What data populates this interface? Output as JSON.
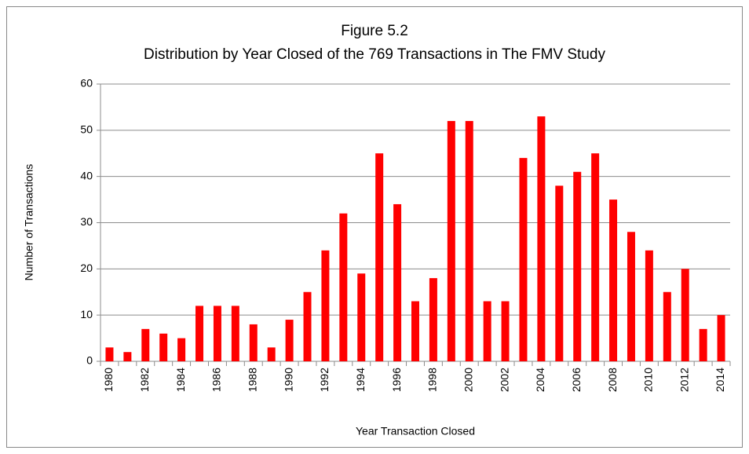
{
  "chart_data": {
    "type": "bar",
    "title": "Figure 5.2",
    "subtitle": "Distribution by Year Closed of the 769 Transactions in The FMV Study",
    "xlabel": "Year Transaction Closed",
    "ylabel": "Number of Transactions",
    "categories": [
      "1980",
      null,
      "1982",
      null,
      "1984",
      null,
      "1986",
      null,
      "1988",
      null,
      "1990",
      null,
      "1992",
      null,
      "1994",
      null,
      "1996",
      null,
      "1998",
      null,
      "2000",
      null,
      "2002",
      null,
      "2004",
      null,
      "2006",
      null,
      "2008",
      null,
      "2010",
      null,
      "2012",
      null,
      "2014"
    ],
    "values": [
      3,
      2,
      7,
      6,
      5,
      12,
      12,
      12,
      8,
      3,
      9,
      15,
      24,
      32,
      19,
      45,
      34,
      13,
      18,
      52,
      52,
      13,
      13,
      44,
      53,
      38,
      41,
      45,
      35,
      28,
      24,
      15,
      20,
      7,
      10
    ],
    "color": "#ff0000",
    "ylim": [
      0,
      60
    ],
    "yticks": [
      0,
      10,
      20,
      30,
      40,
      50,
      60
    ],
    "grid": true
  }
}
